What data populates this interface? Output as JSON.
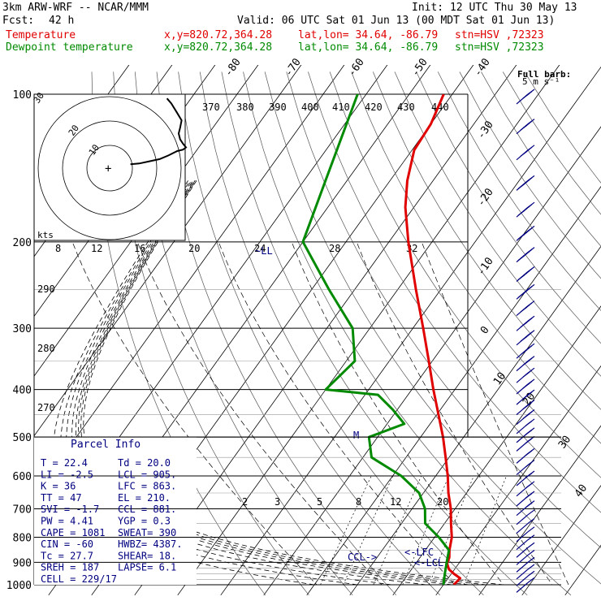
{
  "header": {
    "title": "3km ARW-WRF -- NCAR/MMM",
    "init": "Init: 12 UTC Thu 30 May 13",
    "fcst_label": "Fcst:",
    "fcst_value": "42 h",
    "valid": "Valid: 06 UTC Sat 01 Jun 13 (00 MDT Sat 01 Jun 13)",
    "temp_label": "Temperature",
    "dew_label": "Dewpoint temperature",
    "xy": "x,y=820.72,364.28",
    "latlon": "lat,lon= 34.64, -86.79",
    "stn": "stn=HSV ,72323"
  },
  "wind_scale": {
    "title": "Full barb:",
    "value": "5 m s⁻¹"
  },
  "colors": {
    "temperature": "#e00000",
    "dewpoint": "#008a00",
    "annotation": "#000080",
    "grid": "#000000"
  },
  "parcel_info": {
    "title": "Parcel Info",
    "rows": [
      [
        "T  =    22.4",
        "Td =   20.0"
      ],
      [
        "LI =    -2.5",
        "LCL =  905."
      ],
      [
        "K  =      36",
        "LFC =  863."
      ],
      [
        "TT =      47",
        "EL  =  210."
      ],
      [
        "SVI =   -1.7",
        "CCL =  881."
      ],
      [
        "PW =    4.41",
        "YGP =   0.3"
      ],
      [
        "CAPE =  1081",
        "SWEAT=  390"
      ],
      [
        "CIN =    -60",
        "HWBZ= 4387."
      ],
      [
        "Tc =    27.7",
        "SHEAR=  18."
      ],
      [
        "SREH =   187",
        "LAPSE=  6.1"
      ],
      [
        "CELL = 229/17",
        ""
      ]
    ]
  },
  "chart_data": {
    "type": "line",
    "title": "",
    "xlabel": "",
    "ylabel": "",
    "pressure_levels": [
      100,
      200,
      300,
      400,
      500,
      600,
      700,
      800,
      900,
      1000
    ],
    "pressure_labels": [
      "100",
      "200",
      "300",
      "400",
      "500",
      "600",
      "700",
      "800",
      "900",
      "1000"
    ],
    "isotherm_labels": [
      "-80",
      "-70",
      "-60",
      "-50",
      "-40",
      "-30",
      "-20",
      "-10",
      "0",
      "10",
      "20",
      "30",
      "40"
    ],
    "theta_labels": [
      "370",
      "380",
      "390",
      "400",
      "410",
      "420",
      "430",
      "440",
      "290",
      "280",
      "270"
    ],
    "mixing_ratio_labels": [
      "2",
      "3",
      "5",
      "8",
      "12",
      "20"
    ],
    "hodograph": {
      "units": "kts",
      "ring_labels": [
        "10",
        "20",
        "30"
      ],
      "speed_labels": [
        "8",
        "12",
        "16",
        "20",
        "24",
        "28",
        "32"
      ]
    },
    "annotations": [
      "LL",
      "M",
      "LFC",
      "LCL",
      "CCL"
    ],
    "series": [
      {
        "name": "Temperature",
        "points": [
          [
            1000,
            22.4
          ],
          [
            970,
            22.8
          ],
          [
            950,
            20.6
          ],
          [
            930,
            18.7
          ],
          [
            905,
            17.3
          ],
          [
            880,
            16.8
          ],
          [
            850,
            15.6
          ],
          [
            800,
            14.0
          ],
          [
            750,
            11.5
          ],
          [
            700,
            9.0
          ],
          [
            650,
            5.8
          ],
          [
            600,
            2.8
          ],
          [
            550,
            -0.8
          ],
          [
            500,
            -4.8
          ],
          [
            450,
            -9.6
          ],
          [
            400,
            -15.0
          ],
          [
            350,
            -20.8
          ],
          [
            300,
            -27.6
          ],
          [
            250,
            -35.8
          ],
          [
            200,
            -45.5
          ],
          [
            170,
            -52.0
          ],
          [
            150,
            -56.0
          ],
          [
            130,
            -59.5
          ],
          [
            115,
            -60.0
          ],
          [
            100,
            -62.0
          ]
        ]
      },
      {
        "name": "Dewpoint temperature",
        "points": [
          [
            1000,
            20.0
          ],
          [
            950,
            18.5
          ],
          [
            900,
            17.0
          ],
          [
            850,
            15.5
          ],
          [
            800,
            11.0
          ],
          [
            750,
            5.5
          ],
          [
            700,
            3.0
          ],
          [
            650,
            -1.0
          ],
          [
            600,
            -8.0
          ],
          [
            550,
            -18.0
          ],
          [
            500,
            -22.0
          ],
          [
            470,
            -16.0
          ],
          [
            440,
            -21.0
          ],
          [
            410,
            -27.0
          ],
          [
            400,
            -40.0
          ],
          [
            350,
            -38.0
          ],
          [
            300,
            -44.0
          ],
          [
            250,
            -56.0
          ],
          [
            200,
            -70.0
          ],
          [
            150,
            -75.0
          ],
          [
            100,
            -82.0
          ]
        ]
      }
    ],
    "wind_barbs": {
      "note": "wind profile at right edge",
      "levels": [
        100,
        115,
        130,
        150,
        170,
        190,
        210,
        230,
        250,
        270,
        290,
        310,
        330,
        350,
        370,
        390,
        410,
        430,
        450,
        470,
        490,
        510,
        540,
        570,
        600,
        630,
        660,
        690,
        720,
        750,
        780,
        810,
        840,
        870,
        900,
        930,
        960,
        990
      ],
      "speed_ms": [
        18,
        20,
        22,
        25,
        25,
        25,
        25,
        25,
        25,
        22,
        20,
        20,
        20,
        18,
        18,
        18,
        16,
        15,
        15,
        14,
        12,
        12,
        10,
        10,
        10,
        10,
        10,
        10,
        8,
        8,
        6,
        6,
        6,
        5,
        5,
        5,
        5,
        5
      ]
    }
  }
}
